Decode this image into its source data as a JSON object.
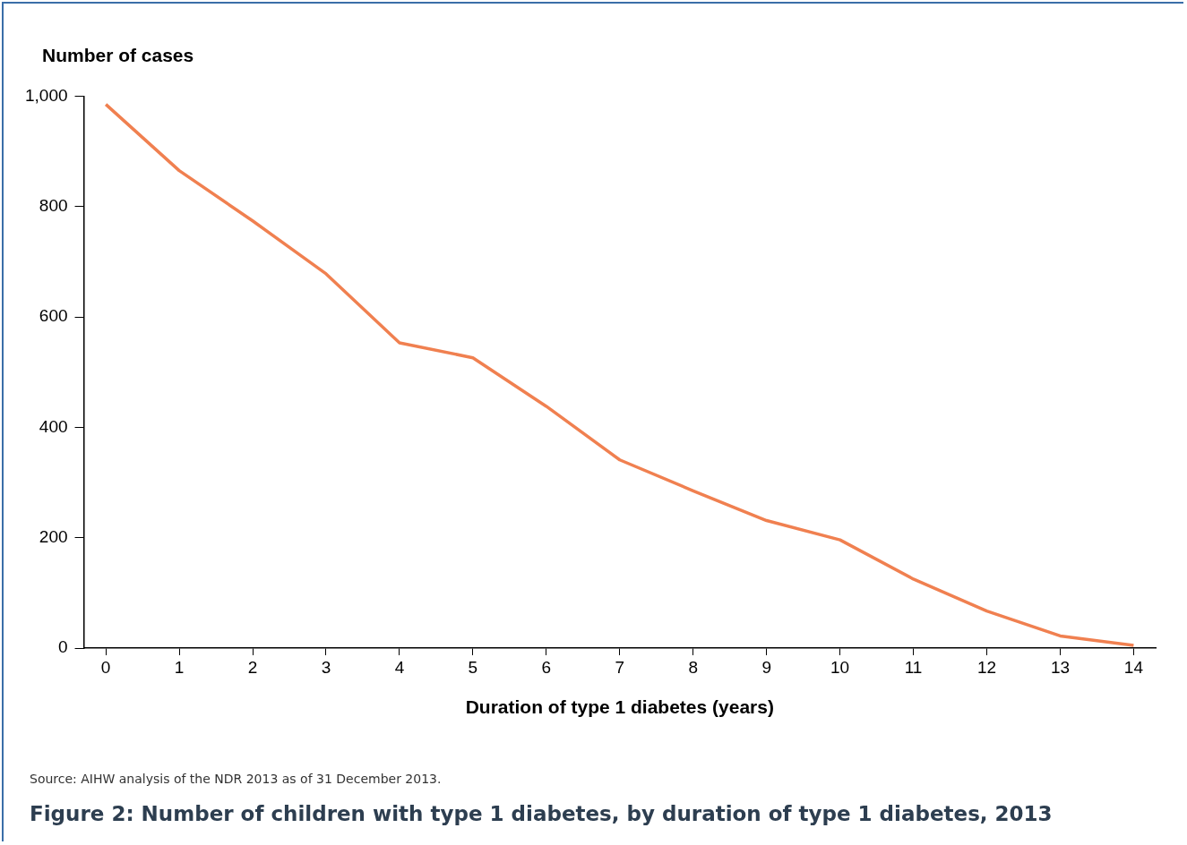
{
  "chart_data": {
    "type": "line",
    "title": "Figure 2: Number of children with type 1 diabetes, by duration of type 1 diabetes, 2013",
    "xlabel": "Duration of type 1 diabetes (years)",
    "ylabel": "Number of cases",
    "x": [
      0,
      1,
      2,
      3,
      4,
      5,
      6,
      7,
      8,
      9,
      10,
      11,
      12,
      13,
      14
    ],
    "xlim": [
      -0.3,
      14.3
    ],
    "xticks": [
      0,
      1,
      2,
      3,
      4,
      5,
      6,
      7,
      8,
      9,
      10,
      11,
      12,
      13,
      14
    ],
    "series": [
      {
        "color": "#f08050",
        "values": [
          985,
          865,
          774,
          678,
          553,
          526,
          438,
          341,
          285,
          231,
          196,
          125,
          67,
          22,
          5
        ]
      }
    ],
    "ylim": [
      0,
      1000
    ],
    "yticks": [
      0,
      200,
      400,
      600,
      800,
      {
        "value": 1000,
        "label": "1,000"
      }
    ],
    "grid": false,
    "legend": false,
    "marker": "none",
    "line_style": "solid",
    "annotations": [
      "Source: AIHW analysis of the NDR 2013 as of 31 December 2013."
    ]
  }
}
